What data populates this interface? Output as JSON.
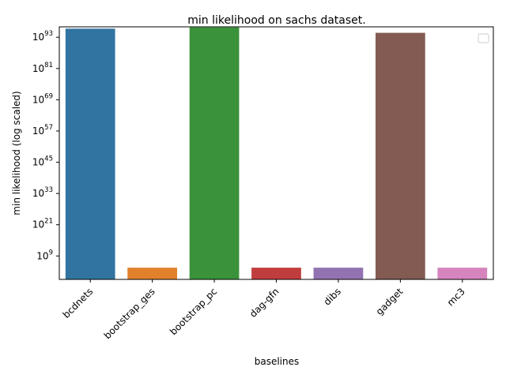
{
  "chart_data": {
    "type": "bar",
    "title": "min likelihood on sachs dataset.",
    "xlabel": "baselines",
    "ylabel": "min likelihood (log scaled)",
    "yscale": "log",
    "ylim_exponent": [
      0,
      97
    ],
    "y_ticks": [
      {
        "base": "10",
        "exp": "9",
        "value_exp": 9
      },
      {
        "base": "10",
        "exp": "21",
        "value_exp": 21
      },
      {
        "base": "10",
        "exp": "33",
        "value_exp": 33
      },
      {
        "base": "10",
        "exp": "45",
        "value_exp": 45
      },
      {
        "base": "10",
        "exp": "57",
        "value_exp": 57
      },
      {
        "base": "10",
        "exp": "69",
        "value_exp": 69
      },
      {
        "base": "10",
        "exp": "81",
        "value_exp": 81
      },
      {
        "base": "10",
        "exp": "93",
        "value_exp": 93
      }
    ],
    "categories": [
      "bcdnets",
      "bootstrap_ges",
      "bootstrap_pc",
      "dag-gfn",
      "dibs",
      "gadget",
      "mc3"
    ],
    "values_log10": [
      96.3,
      4.5,
      96.8,
      4.5,
      4.5,
      94.7,
      4.5
    ],
    "colors": [
      "#3274a1",
      "#e1812c",
      "#3a923a",
      "#c03d3e",
      "#9372b2",
      "#845b53",
      "#d684bd"
    ],
    "grid": false,
    "legend": {
      "placement": "upper right",
      "entries": []
    }
  }
}
